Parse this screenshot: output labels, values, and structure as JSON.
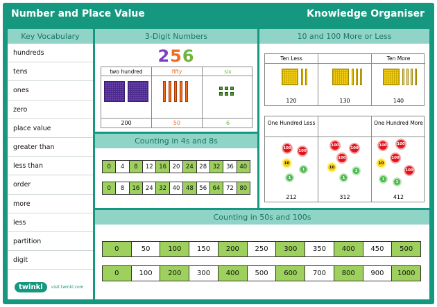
{
  "header": {
    "title_left": "Number and Place Value",
    "title_right": "Knowledge Organiser"
  },
  "vocab": {
    "title": "Key Vocabulary",
    "items": [
      "hundreds",
      "tens",
      "ones",
      "zero",
      "place value",
      "greater than",
      "less than",
      "order",
      "more",
      "less",
      "partition",
      "digit"
    ],
    "logo_text": "twinkl",
    "logo_url": "visit twinkl.com"
  },
  "three_digit": {
    "title": "3-Digit Numbers",
    "digits": [
      {
        "char": "2",
        "color": "#7b3fc6"
      },
      {
        "char": "5",
        "color": "#f26a1b"
      },
      {
        "char": "6",
        "color": "#6fb43f"
      }
    ],
    "columns": [
      {
        "name": "two hundred",
        "value": "200",
        "color": "#7b3fc6"
      },
      {
        "name": "fifty",
        "value": "50",
        "color": "#f26a1b"
      },
      {
        "name": "six",
        "value": "6",
        "color": "#6fb43f"
      }
    ]
  },
  "count4s8s": {
    "title": "Counting in 4s and 8s",
    "fours": [
      "0",
      "4",
      "8",
      "12",
      "16",
      "20",
      "24",
      "28",
      "32",
      "36",
      "40"
    ],
    "eights": [
      "0",
      "8",
      "16",
      "24",
      "32",
      "40",
      "48",
      "56",
      "64",
      "72",
      "80"
    ]
  },
  "ten_hundred": {
    "title": "10 and 100 More or Less",
    "ten_labels": [
      "Ten Less",
      "",
      "Ten More"
    ],
    "ten_values": [
      "120",
      "130",
      "140"
    ],
    "hundred_labels": [
      "One Hundred Less",
      "",
      "One Hundred More"
    ],
    "hundred_values": [
      "212",
      "312",
      "412"
    ],
    "coin_100": "100",
    "coin_10": "10",
    "coin_1": "1"
  },
  "count50s100s": {
    "title": "Counting in 50s and 100s",
    "fifties": [
      "0",
      "50",
      "100",
      "150",
      "200",
      "250",
      "300",
      "350",
      "400",
      "450",
      "500"
    ],
    "hundreds": [
      "0",
      "100",
      "200",
      "300",
      "400",
      "500",
      "600",
      "700",
      "800",
      "900",
      "1000"
    ]
  },
  "colors": {
    "accent": "#16977f",
    "title_bar": "#8fd4c6",
    "strip_green": "#9ed05d"
  }
}
